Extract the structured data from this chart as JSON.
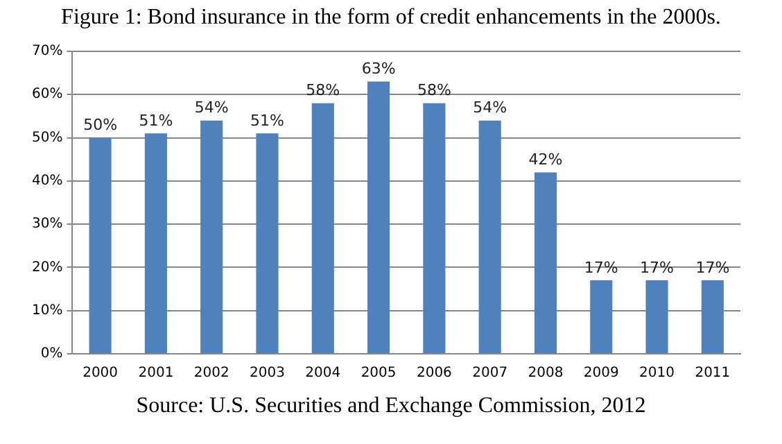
{
  "chart_data": {
    "type": "bar",
    "title": "Figure 1: Bond insurance in the form of credit enhancements in the 2000s.",
    "categories": [
      "2000",
      "2001",
      "2002",
      "2003",
      "2004",
      "2005",
      "2006",
      "2007",
      "2008",
      "2009",
      "2010",
      "2011"
    ],
    "values": [
      50,
      51,
      54,
      51,
      58,
      63,
      58,
      54,
      42,
      17,
      17,
      17
    ],
    "value_labels": [
      "50%",
      "51%",
      "54%",
      "51%",
      "58%",
      "63%",
      "58%",
      "54%",
      "42%",
      "17%",
      "17%",
      "17%"
    ],
    "color": "#4f81bd",
    "ylim": [
      0,
      70
    ],
    "yticks": [
      {
        "value": 0,
        "label": "0%"
      },
      {
        "value": 10,
        "label": "10%"
      },
      {
        "value": 20,
        "label": "20%"
      },
      {
        "value": 30,
        "label": "30%"
      },
      {
        "value": 40,
        "label": "40%"
      },
      {
        "value": 50,
        "label": "50%"
      },
      {
        "value": 60,
        "label": "60%"
      },
      {
        "value": 70,
        "label": "70%"
      }
    ],
    "grid": "y",
    "legend": false,
    "annotations": [
      "Source: U.S. Securities and Exchange Commission, 2012"
    ]
  }
}
